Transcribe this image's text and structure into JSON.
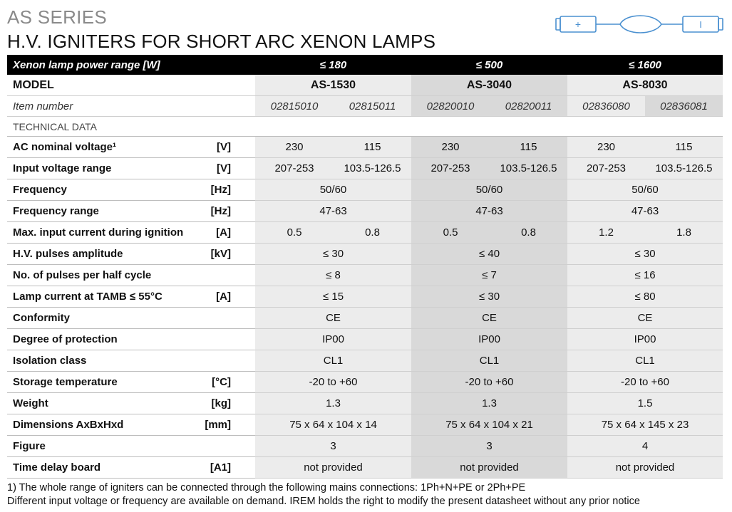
{
  "header": {
    "series": "AS SERIES",
    "title": "H.V. IGNITERS FOR SHORT ARC XENON LAMPS",
    "lamp_plus": "+",
    "lamp_minus": "I"
  },
  "table": {
    "power_label": "Xenon lamp power range [W]",
    "power_ranges": [
      "≤ 180",
      "≤ 500",
      "≤ 1600"
    ],
    "model_label": "MODEL",
    "models": [
      "AS-1530",
      "AS-3040",
      "AS-8030"
    ],
    "item_label": "Item number",
    "items": [
      "02815010",
      "02815011",
      "02820010",
      "02820011",
      "02836080",
      "02836081"
    ],
    "tech_label": "TECHNICAL DATA",
    "rows": [
      {
        "label": "AC nominal voltage¹",
        "unit": "[V]",
        "cells": [
          "230",
          "115",
          "230",
          "115",
          "230",
          "115"
        ]
      },
      {
        "label": "Input voltage range",
        "unit": "[V]",
        "cells": [
          "207-253",
          "103.5-126.5",
          "207-253",
          "103.5-126.5",
          "207-253",
          "103.5-126.5"
        ]
      },
      {
        "label": "Frequency",
        "unit": "[Hz]",
        "merged": [
          "50/60",
          "50/60",
          "50/60"
        ]
      },
      {
        "label": "Frequency range",
        "unit": "[Hz]",
        "merged": [
          "47-63",
          "47-63",
          "47-63"
        ]
      },
      {
        "label": "Max. input current during ignition",
        "unit": "[A]",
        "cells": [
          "0.5",
          "0.8",
          "0.5",
          "0.8",
          "1.2",
          "1.8"
        ]
      },
      {
        "label": "H.V. pulses amplitude",
        "unit": "[kV]",
        "merged": [
          "≤ 30",
          "≤ 40",
          "≤ 30"
        ]
      },
      {
        "label": "No. of pulses per half cycle",
        "unit": "",
        "merged": [
          "≤ 8",
          "≤ 7",
          "≤ 16"
        ]
      },
      {
        "label": "Lamp current at TAMB ≤ 55°C",
        "unit": "[A]",
        "merged": [
          "≤ 15",
          "≤ 30",
          "≤ 80"
        ]
      },
      {
        "label": "Conformity",
        "unit": "",
        "merged": [
          "CE",
          "CE",
          "CE"
        ]
      },
      {
        "label": "Degree of protection",
        "unit": "",
        "merged": [
          "IP00",
          "IP00",
          "IP00"
        ]
      },
      {
        "label": "Isolation class",
        "unit": "",
        "merged": [
          "CL1",
          "CL1",
          "CL1"
        ]
      },
      {
        "label": "Storage temperature",
        "unit": "[°C]",
        "merged": [
          "-20 to +60",
          "-20 to +60",
          "-20 to +60"
        ]
      },
      {
        "label": "Weight",
        "unit": "[kg]",
        "merged": [
          "1.3",
          "1.3",
          "1.5"
        ]
      },
      {
        "label": "Dimensions AxBxHxd",
        "unit": "[mm]",
        "merged": [
          "75 x 64 x 104 x 14",
          "75 x 64 x 104 x 21",
          "75 x 64 x 145 x 23"
        ]
      },
      {
        "label": "Figure",
        "unit": "",
        "merged": [
          "3",
          "3",
          "4"
        ]
      },
      {
        "label": "Time delay board",
        "unit": "[A1]",
        "merged": [
          "not provided",
          "not provided",
          "not provided"
        ]
      }
    ]
  },
  "footer": {
    "note1": "1) The whole range of igniters can be connected through the following mains connections: 1Ph+N+PE or 2Ph+PE",
    "note2": "Different input voltage or frequency are available on demand. IREM holds the right to modify the present datasheet without any prior notice"
  },
  "colors": {
    "header_bg": "#000000",
    "band_light": "#ececec",
    "band_dark": "#d9d9d9",
    "lamp_stroke": "#4a90d0",
    "series_gray": "#8a8a8a"
  }
}
